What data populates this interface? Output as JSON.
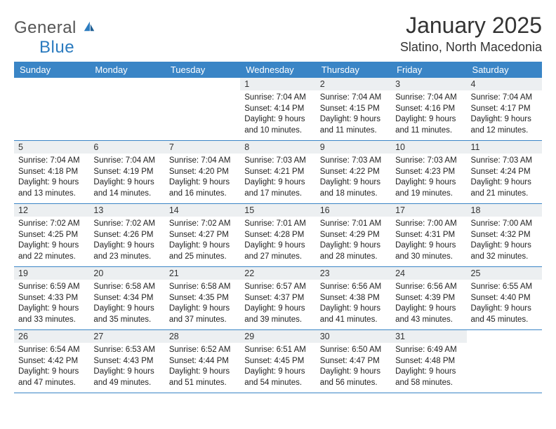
{
  "brand": {
    "word1": "General",
    "word2": "Blue"
  },
  "title": "January 2025",
  "location": "Slatino, North Macedonia",
  "colors": {
    "header_bg": "#3a85c6",
    "header_text": "#ffffff",
    "daynum_bg": "#eceff1",
    "rule": "#3a85c6",
    "logo_blue": "#2b7bbf",
    "text": "#222222"
  },
  "day_headers": [
    "Sunday",
    "Monday",
    "Tuesday",
    "Wednesday",
    "Thursday",
    "Friday",
    "Saturday"
  ],
  "weeks": [
    [
      {
        "n": null
      },
      {
        "n": null
      },
      {
        "n": null
      },
      {
        "n": 1,
        "sunrise": "7:04 AM",
        "sunset": "4:14 PM",
        "daylight": "9 hours and 10 minutes."
      },
      {
        "n": 2,
        "sunrise": "7:04 AM",
        "sunset": "4:15 PM",
        "daylight": "9 hours and 11 minutes."
      },
      {
        "n": 3,
        "sunrise": "7:04 AM",
        "sunset": "4:16 PM",
        "daylight": "9 hours and 11 minutes."
      },
      {
        "n": 4,
        "sunrise": "7:04 AM",
        "sunset": "4:17 PM",
        "daylight": "9 hours and 12 minutes."
      }
    ],
    [
      {
        "n": 5,
        "sunrise": "7:04 AM",
        "sunset": "4:18 PM",
        "daylight": "9 hours and 13 minutes."
      },
      {
        "n": 6,
        "sunrise": "7:04 AM",
        "sunset": "4:19 PM",
        "daylight": "9 hours and 14 minutes."
      },
      {
        "n": 7,
        "sunrise": "7:04 AM",
        "sunset": "4:20 PM",
        "daylight": "9 hours and 16 minutes."
      },
      {
        "n": 8,
        "sunrise": "7:03 AM",
        "sunset": "4:21 PM",
        "daylight": "9 hours and 17 minutes."
      },
      {
        "n": 9,
        "sunrise": "7:03 AM",
        "sunset": "4:22 PM",
        "daylight": "9 hours and 18 minutes."
      },
      {
        "n": 10,
        "sunrise": "7:03 AM",
        "sunset": "4:23 PM",
        "daylight": "9 hours and 19 minutes."
      },
      {
        "n": 11,
        "sunrise": "7:03 AM",
        "sunset": "4:24 PM",
        "daylight": "9 hours and 21 minutes."
      }
    ],
    [
      {
        "n": 12,
        "sunrise": "7:02 AM",
        "sunset": "4:25 PM",
        "daylight": "9 hours and 22 minutes."
      },
      {
        "n": 13,
        "sunrise": "7:02 AM",
        "sunset": "4:26 PM",
        "daylight": "9 hours and 23 minutes."
      },
      {
        "n": 14,
        "sunrise": "7:02 AM",
        "sunset": "4:27 PM",
        "daylight": "9 hours and 25 minutes."
      },
      {
        "n": 15,
        "sunrise": "7:01 AM",
        "sunset": "4:28 PM",
        "daylight": "9 hours and 27 minutes."
      },
      {
        "n": 16,
        "sunrise": "7:01 AM",
        "sunset": "4:29 PM",
        "daylight": "9 hours and 28 minutes."
      },
      {
        "n": 17,
        "sunrise": "7:00 AM",
        "sunset": "4:31 PM",
        "daylight": "9 hours and 30 minutes."
      },
      {
        "n": 18,
        "sunrise": "7:00 AM",
        "sunset": "4:32 PM",
        "daylight": "9 hours and 32 minutes."
      }
    ],
    [
      {
        "n": 19,
        "sunrise": "6:59 AM",
        "sunset": "4:33 PM",
        "daylight": "9 hours and 33 minutes."
      },
      {
        "n": 20,
        "sunrise": "6:58 AM",
        "sunset": "4:34 PM",
        "daylight": "9 hours and 35 minutes."
      },
      {
        "n": 21,
        "sunrise": "6:58 AM",
        "sunset": "4:35 PM",
        "daylight": "9 hours and 37 minutes."
      },
      {
        "n": 22,
        "sunrise": "6:57 AM",
        "sunset": "4:37 PM",
        "daylight": "9 hours and 39 minutes."
      },
      {
        "n": 23,
        "sunrise": "6:56 AM",
        "sunset": "4:38 PM",
        "daylight": "9 hours and 41 minutes."
      },
      {
        "n": 24,
        "sunrise": "6:56 AM",
        "sunset": "4:39 PM",
        "daylight": "9 hours and 43 minutes."
      },
      {
        "n": 25,
        "sunrise": "6:55 AM",
        "sunset": "4:40 PM",
        "daylight": "9 hours and 45 minutes."
      }
    ],
    [
      {
        "n": 26,
        "sunrise": "6:54 AM",
        "sunset": "4:42 PM",
        "daylight": "9 hours and 47 minutes."
      },
      {
        "n": 27,
        "sunrise": "6:53 AM",
        "sunset": "4:43 PM",
        "daylight": "9 hours and 49 minutes."
      },
      {
        "n": 28,
        "sunrise": "6:52 AM",
        "sunset": "4:44 PM",
        "daylight": "9 hours and 51 minutes."
      },
      {
        "n": 29,
        "sunrise": "6:51 AM",
        "sunset": "4:45 PM",
        "daylight": "9 hours and 54 minutes."
      },
      {
        "n": 30,
        "sunrise": "6:50 AM",
        "sunset": "4:47 PM",
        "daylight": "9 hours and 56 minutes."
      },
      {
        "n": 31,
        "sunrise": "6:49 AM",
        "sunset": "4:48 PM",
        "daylight": "9 hours and 58 minutes."
      },
      {
        "n": null
      }
    ]
  ],
  "labels": {
    "sunrise": "Sunrise:",
    "sunset": "Sunset:",
    "daylight": "Daylight:"
  }
}
